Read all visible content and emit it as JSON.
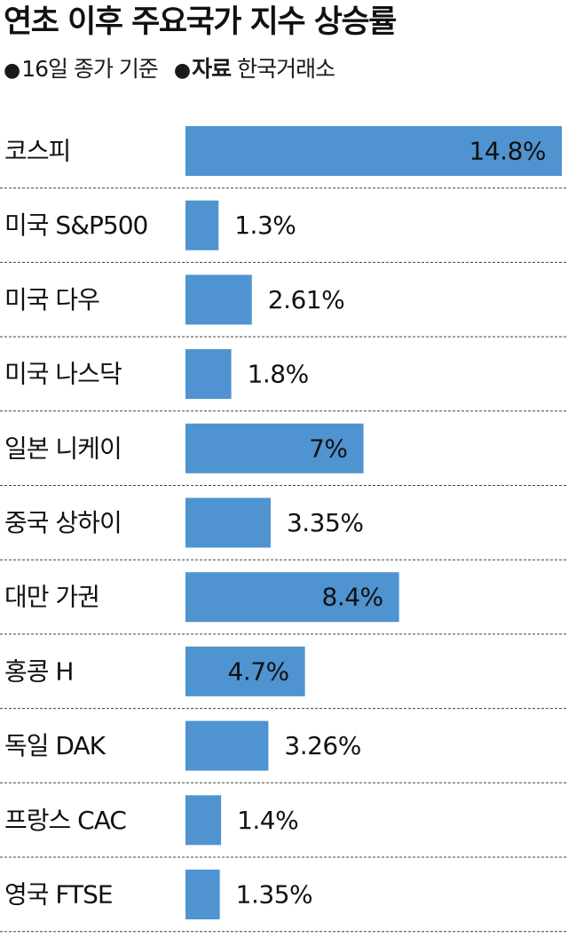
{
  "header": {
    "title": "연초 이후 주요국가 지수 상승률",
    "note_bullet": "●",
    "note_date": "16일 종가 기준",
    "source_label": "자료",
    "source_value": "한국거래소"
  },
  "colors": {
    "bar": "#4f93d0",
    "text": "#111111",
    "separator": "#444444"
  },
  "chart_data": {
    "type": "bar",
    "orientation": "horizontal",
    "title": "연초 이후 주요국가 지수 상승률",
    "unit": "%",
    "grid": false,
    "categories": [
      "코스피",
      "미국 S&P500",
      "미국 다우",
      "미국 나스닥",
      "일본 니케이",
      "중국 상하이",
      "대만 가권",
      "홍콩 H",
      "독일 DAK",
      "프랑스 CAC",
      "영국 FTSE"
    ],
    "values": [
      14.8,
      1.3,
      2.61,
      1.8,
      7,
      3.35,
      8.4,
      4.7,
      3.26,
      1.4,
      1.35
    ],
    "labels": [
      "14.8%",
      "1.3%",
      "2.61%",
      "1.8%",
      "7%",
      "3.35%",
      "8.4%",
      "4.7%",
      "3.26%",
      "1.4%",
      "1.35%"
    ],
    "xlim": [
      0,
      14.8
    ]
  }
}
